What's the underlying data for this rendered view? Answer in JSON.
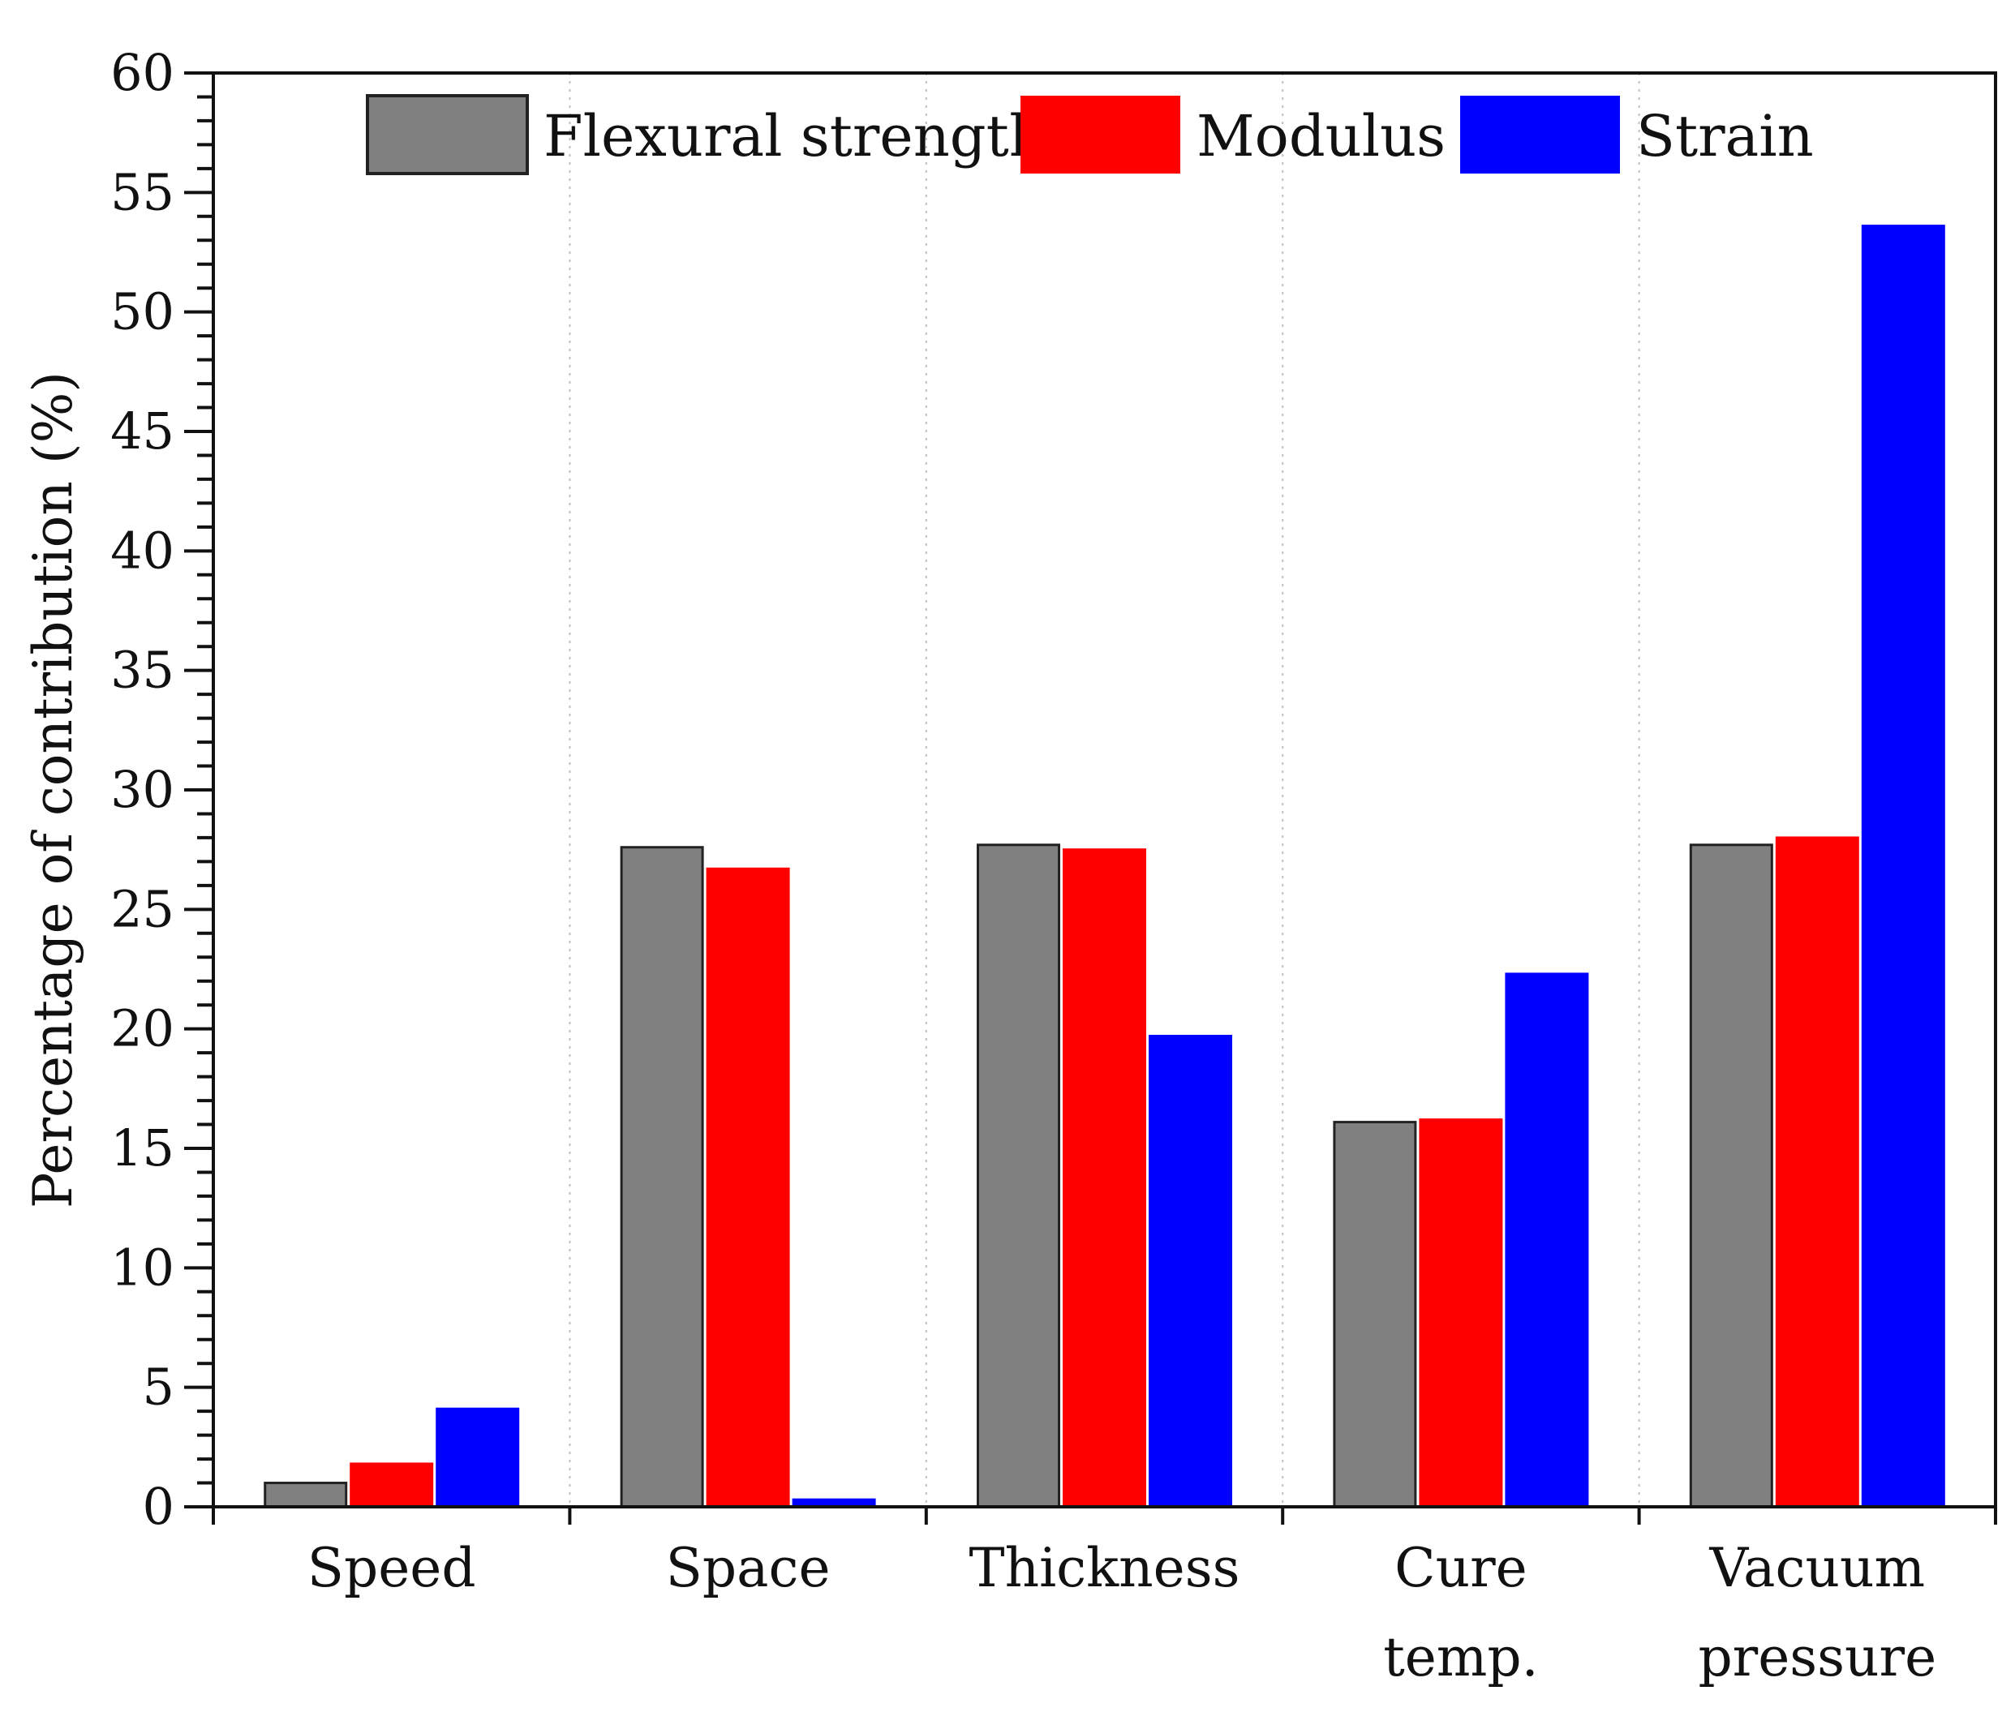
{
  "chart_data": {
    "type": "bar",
    "title": "",
    "xlabel": "",
    "ylabel": "Percentage of contribution (%)",
    "ylim": [
      0,
      60
    ],
    "y_major_step": 5,
    "y_minor_step": 1,
    "yticks": [
      "0",
      "5",
      "10",
      "15",
      "20",
      "25",
      "30",
      "35",
      "40",
      "45",
      "50",
      "55",
      "60"
    ],
    "categories": [
      {
        "line1": "Speed",
        "line2": ""
      },
      {
        "line1": "Space",
        "line2": ""
      },
      {
        "line1": "Thickness",
        "line2": ""
      },
      {
        "line1": "Cure",
        "line2": "temp."
      },
      {
        "line1": "Vacuum",
        "line2": "pressure"
      }
    ],
    "series": [
      {
        "name": "Flexural strength",
        "color": "#808080",
        "border": "#222222",
        "values": [
          1.0,
          27.6,
          27.7,
          16.1,
          27.7
        ]
      },
      {
        "name": "Modulus",
        "color": "#ff0000",
        "border": "#ff0000",
        "values": [
          1.8,
          26.7,
          27.5,
          16.2,
          28.0
        ]
      },
      {
        "name": "Strain",
        "color": "#0000ff",
        "border": "#0000ff",
        "values": [
          4.1,
          0.3,
          19.7,
          22.3,
          53.6
        ]
      }
    ],
    "legend": {
      "position": "top",
      "entries": [
        "Flexural strength",
        "Modulus",
        "Strain"
      ]
    },
    "grid": "vertical-dotted-between-categories"
  }
}
